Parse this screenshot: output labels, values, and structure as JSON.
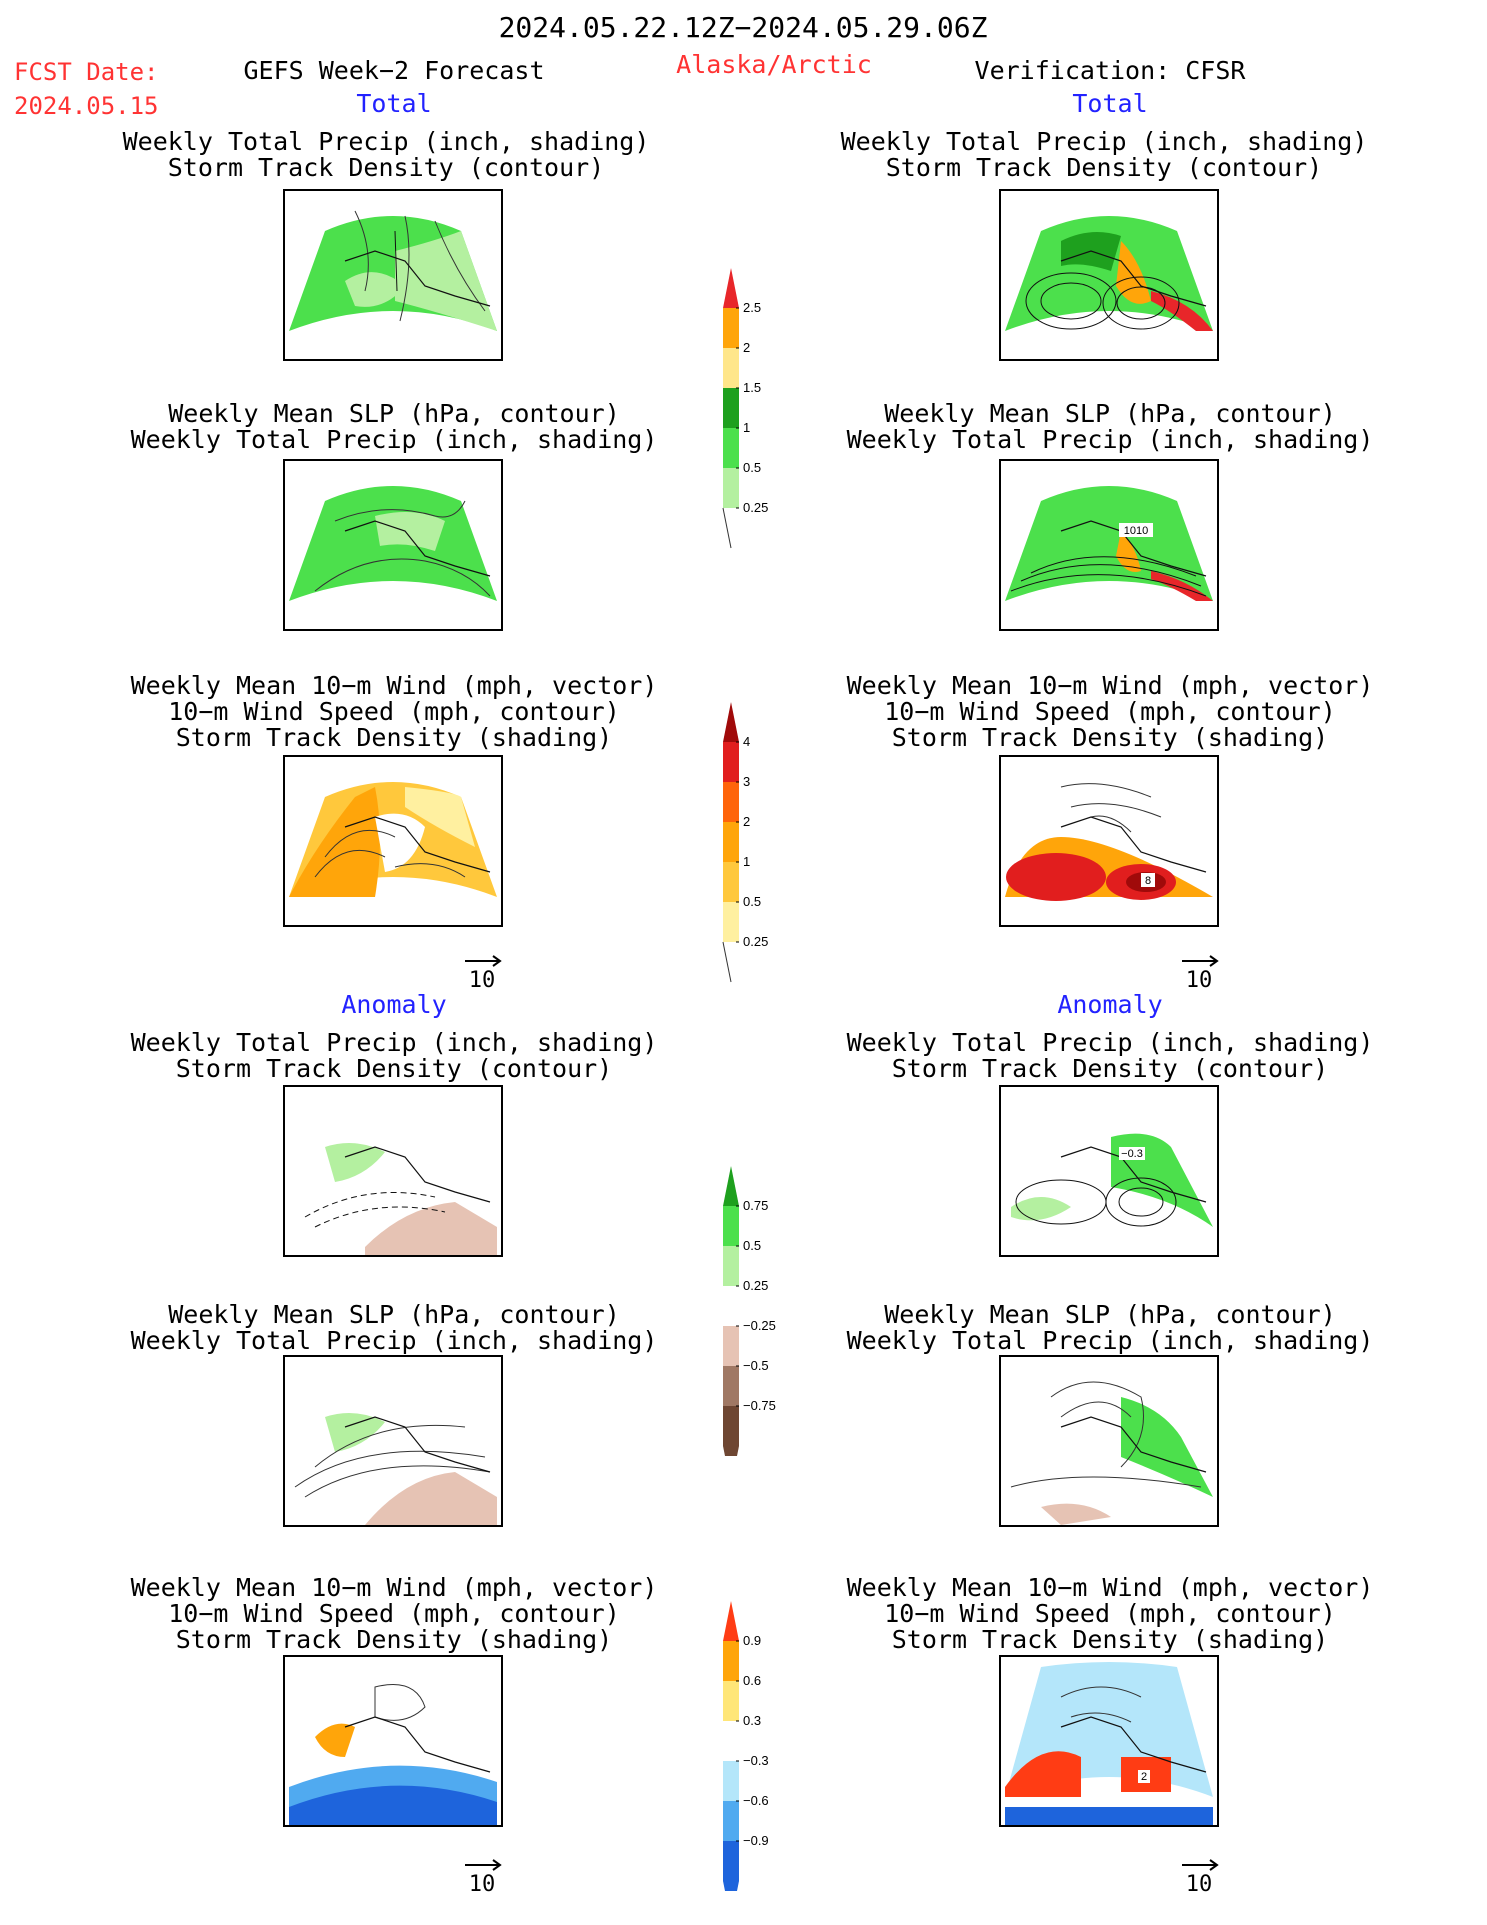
{
  "header": {
    "date_range": "2024.05.22.12Z−2024.05.29.06Z",
    "fcst_label": "FCST Date:",
    "fcst_date": "2024.05.15",
    "model": "GEFS Week−2 Forecast",
    "region": "Alaska/Arctic",
    "verification": "Verification: CFSR"
  },
  "sections": {
    "total": "Total",
    "anomaly": "Anomaly"
  },
  "panel_titles": {
    "precip_storm": [
      "Weekly Total Precip (inch, shading)",
      "Storm Track Density (contour)"
    ],
    "slp_precip": [
      "Weekly Mean SLP (hPa, contour)",
      "Weekly Total Precip (inch, shading)"
    ],
    "wind_storm": [
      "Weekly Mean 10−m Wind (mph, vector)",
      "10−m Wind Speed (mph, contour)",
      "Storm Track Density (shading)"
    ]
  },
  "panel_labels": {
    "verif_slp_total": "1010",
    "verif_wind_total": "8",
    "verif_precip_anom": "−0.3",
    "verif_wind_anom": "2"
  },
  "vector_ref": "10",
  "colorbars": {
    "precip_total": {
      "labels": [
        "2.5",
        "2",
        "1.5",
        "1",
        "0.5",
        "0.25"
      ],
      "colors": [
        "#e8262a",
        "#ffa50a",
        "#ffe68a",
        "#1ea01e",
        "#4ce04c",
        "#b4f0a0"
      ]
    },
    "storm_total": {
      "labels": [
        "4",
        "3",
        "2",
        "1",
        "0.5",
        "0.25"
      ],
      "colors": [
        "#a00a0a",
        "#e11e1e",
        "#ff640a",
        "#ffa50a",
        "#ffc83c",
        "#fff0a0"
      ]
    },
    "precip_anom": {
      "labels": [
        "0.75",
        "0.5",
        "0.25",
        "−0.25",
        "−0.5",
        "−0.75"
      ],
      "colors": [
        "#1ea01e",
        "#4ce04c",
        "#b4f0a0",
        "#ffffff",
        "#e6c3b4",
        "#a07864",
        "#6e4632"
      ]
    },
    "storm_anom": {
      "labels": [
        "0.9",
        "0.6",
        "0.3",
        "−0.3",
        "−0.6",
        "−0.9"
      ],
      "colors": [
        "#ff3c14",
        "#ffa50a",
        "#ffe678",
        "#ffffff",
        "#b4e6fa",
        "#50aaf0",
        "#1e64dc"
      ]
    }
  }
}
